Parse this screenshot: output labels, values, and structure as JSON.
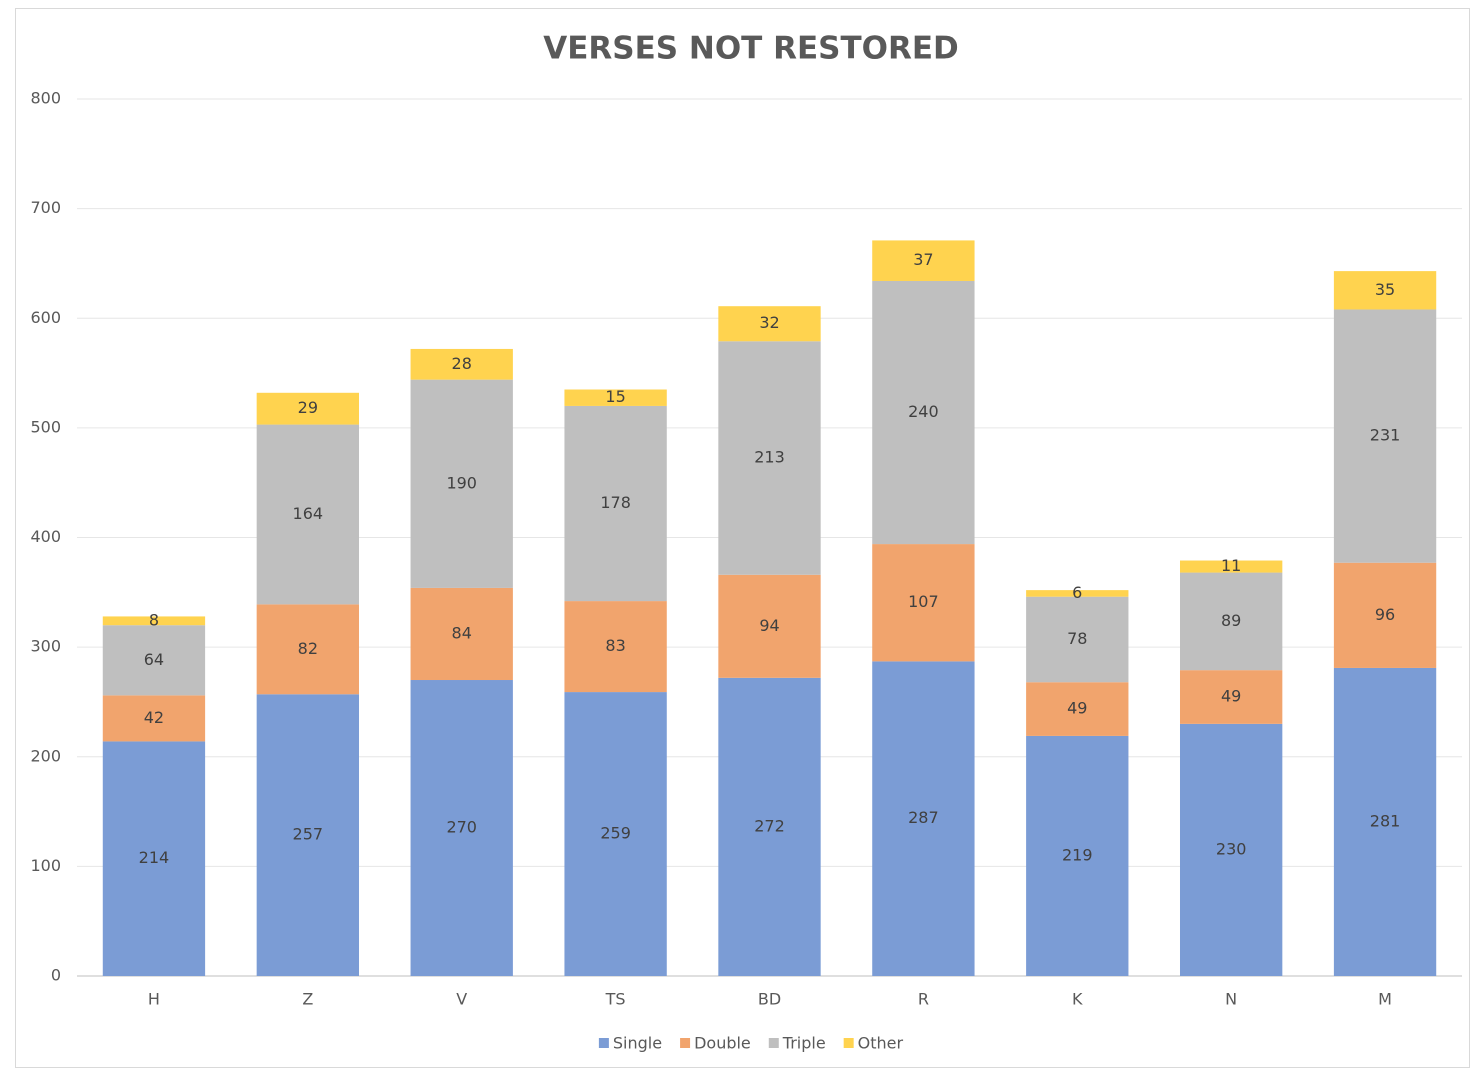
{
  "chart_data": {
    "type": "stacked_bar",
    "title": "VERSES NOT RESTORED",
    "categories": [
      "H",
      "Z",
      "V",
      "TS",
      "BD",
      "R",
      "K",
      "N",
      "M"
    ],
    "series": [
      {
        "name": "Single",
        "color": "#7b9cd5",
        "values": [
          214,
          257,
          270,
          259,
          272,
          287,
          219,
          230,
          281
        ]
      },
      {
        "name": "Double",
        "color": "#f1a46d",
        "values": [
          42,
          82,
          84,
          83,
          94,
          107,
          49,
          49,
          96
        ]
      },
      {
        "name": "Triple",
        "color": "#bfbfbf",
        "values": [
          64,
          164,
          190,
          178,
          213,
          240,
          78,
          89,
          231
        ]
      },
      {
        "name": "Other",
        "color": "#ffd34f",
        "values": [
          8,
          29,
          28,
          15,
          32,
          37,
          6,
          11,
          35
        ]
      }
    ],
    "ylim": [
      0,
      800
    ],
    "yticks": [
      0,
      100,
      200,
      300,
      400,
      500,
      600,
      700,
      800
    ],
    "grid": true,
    "legend": "bottom"
  }
}
